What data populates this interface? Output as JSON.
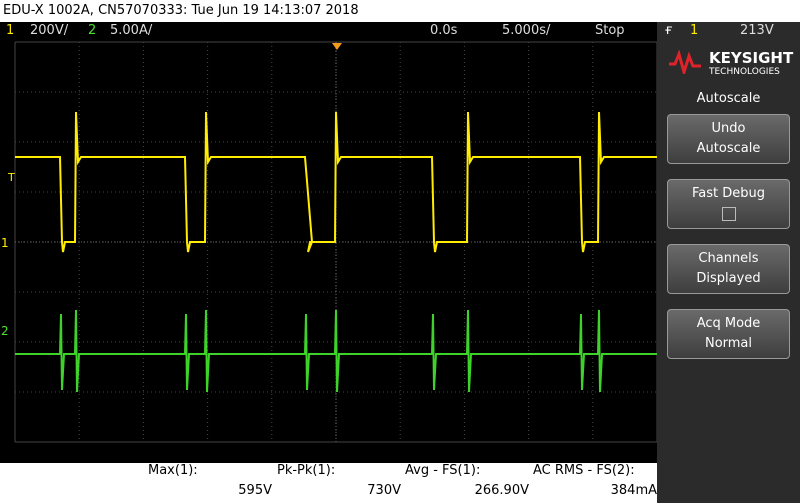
{
  "header": {
    "title": "EDU-X 1002A, CN57070333: Tue Jun 19 14:13:07 2018"
  },
  "status_bar": {
    "ch1_label": "1",
    "ch1_scale": "200V/",
    "ch2_label": "2",
    "ch2_scale": "5.00A/",
    "time_delay": "0.0s",
    "time_scale": "5.000s/",
    "run_state": "Stop",
    "trigger_source": "1",
    "trigger_level": "213V"
  },
  "markers": {
    "trigger": "T",
    "ch1": "1",
    "ch2": "2"
  },
  "side_panel": {
    "brand": "KEYSIGHT",
    "brand_sub": "TECHNOLOGIES",
    "menu_title": "Autoscale",
    "buttons": [
      {
        "lines": [
          "Undo",
          "Autoscale"
        ]
      },
      {
        "lines": [
          "Fast Debug"
        ]
      },
      {
        "lines": [
          "Channels",
          "Displayed"
        ]
      },
      {
        "lines": [
          "Acq Mode",
          "Normal"
        ]
      }
    ]
  },
  "measurements": [
    {
      "label": "Max(1):",
      "value": "595V"
    },
    {
      "label": "Pk-Pk(1):",
      "value": "730V"
    },
    {
      "label": "Avg - FS(1):",
      "value": "266.90V"
    },
    {
      "label": "AC RMS - FS(2):",
      "value": "384mA"
    }
  ]
}
